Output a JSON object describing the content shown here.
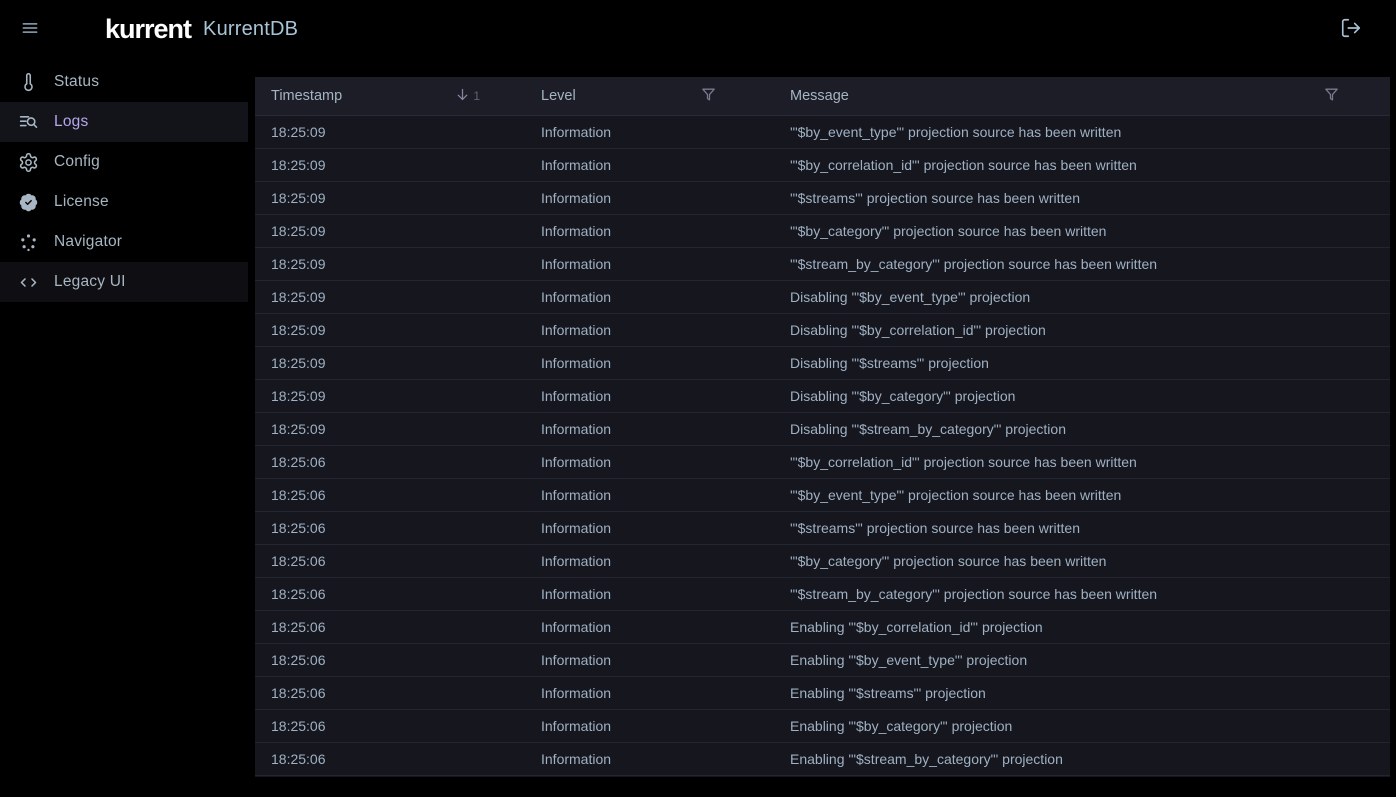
{
  "theme": {
    "accent": "#b5a7ec",
    "text-primary": "#9fb1c2",
    "app-title": "#a9c4d6",
    "brand-text": "#ffffff"
  },
  "topbar": {
    "brand": "kurrent",
    "app_title": "KurrentDB",
    "menu_icon": "menu",
    "logout_icon": "logout"
  },
  "sidebar": {
    "items": [
      {
        "label": "Status",
        "icon": "thermometer",
        "state": "normal"
      },
      {
        "label": "Logs",
        "icon": "list-search",
        "state": "active"
      },
      {
        "label": "Config",
        "icon": "gear",
        "state": "normal"
      },
      {
        "label": "License",
        "icon": "badge-check",
        "state": "normal"
      },
      {
        "label": "Navigator",
        "icon": "navigator-dots",
        "state": "normal"
      },
      {
        "label": "Legacy UI",
        "icon": "code-brackets",
        "state": "highlight"
      }
    ]
  },
  "table": {
    "columns": {
      "timestamp": {
        "label": "Timestamp",
        "sort_order": "1",
        "sort_icon": "sort-desc"
      },
      "level": {
        "label": "Level",
        "filter_icon": "funnel"
      },
      "message": {
        "label": "Message",
        "filter_icon": "funnel"
      }
    },
    "rows": [
      {
        "timestamp": "18:25:09",
        "level": "Information",
        "message": "'\"$by_event_type\"' projection source has been written"
      },
      {
        "timestamp": "18:25:09",
        "level": "Information",
        "message": "'\"$by_correlation_id\"' projection source has been written"
      },
      {
        "timestamp": "18:25:09",
        "level": "Information",
        "message": "'\"$streams\"' projection source has been written"
      },
      {
        "timestamp": "18:25:09",
        "level": "Information",
        "message": "'\"$by_category\"' projection source has been written"
      },
      {
        "timestamp": "18:25:09",
        "level": "Information",
        "message": "'\"$stream_by_category\"' projection source has been written"
      },
      {
        "timestamp": "18:25:09",
        "level": "Information",
        "message": "Disabling '\"$by_event_type\"' projection"
      },
      {
        "timestamp": "18:25:09",
        "level": "Information",
        "message": "Disabling '\"$by_correlation_id\"' projection"
      },
      {
        "timestamp": "18:25:09",
        "level": "Information",
        "message": "Disabling '\"$streams\"' projection"
      },
      {
        "timestamp": "18:25:09",
        "level": "Information",
        "message": "Disabling '\"$by_category\"' projection"
      },
      {
        "timestamp": "18:25:09",
        "level": "Information",
        "message": "Disabling '\"$stream_by_category\"' projection"
      },
      {
        "timestamp": "18:25:06",
        "level": "Information",
        "message": "'\"$by_correlation_id\"' projection source has been written"
      },
      {
        "timestamp": "18:25:06",
        "level": "Information",
        "message": "'\"$by_event_type\"' projection source has been written"
      },
      {
        "timestamp": "18:25:06",
        "level": "Information",
        "message": "'\"$streams\"' projection source has been written"
      },
      {
        "timestamp": "18:25:06",
        "level": "Information",
        "message": "'\"$by_category\"' projection source has been written"
      },
      {
        "timestamp": "18:25:06",
        "level": "Information",
        "message": "'\"$stream_by_category\"' projection source has been written"
      },
      {
        "timestamp": "18:25:06",
        "level": "Information",
        "message": "Enabling '\"$by_correlation_id\"' projection"
      },
      {
        "timestamp": "18:25:06",
        "level": "Information",
        "message": "Enabling '\"$by_event_type\"' projection"
      },
      {
        "timestamp": "18:25:06",
        "level": "Information",
        "message": "Enabling '\"$streams\"' projection"
      },
      {
        "timestamp": "18:25:06",
        "level": "Information",
        "message": "Enabling '\"$by_category\"' projection"
      },
      {
        "timestamp": "18:25:06",
        "level": "Information",
        "message": "Enabling '\"$stream_by_category\"' projection"
      }
    ]
  }
}
